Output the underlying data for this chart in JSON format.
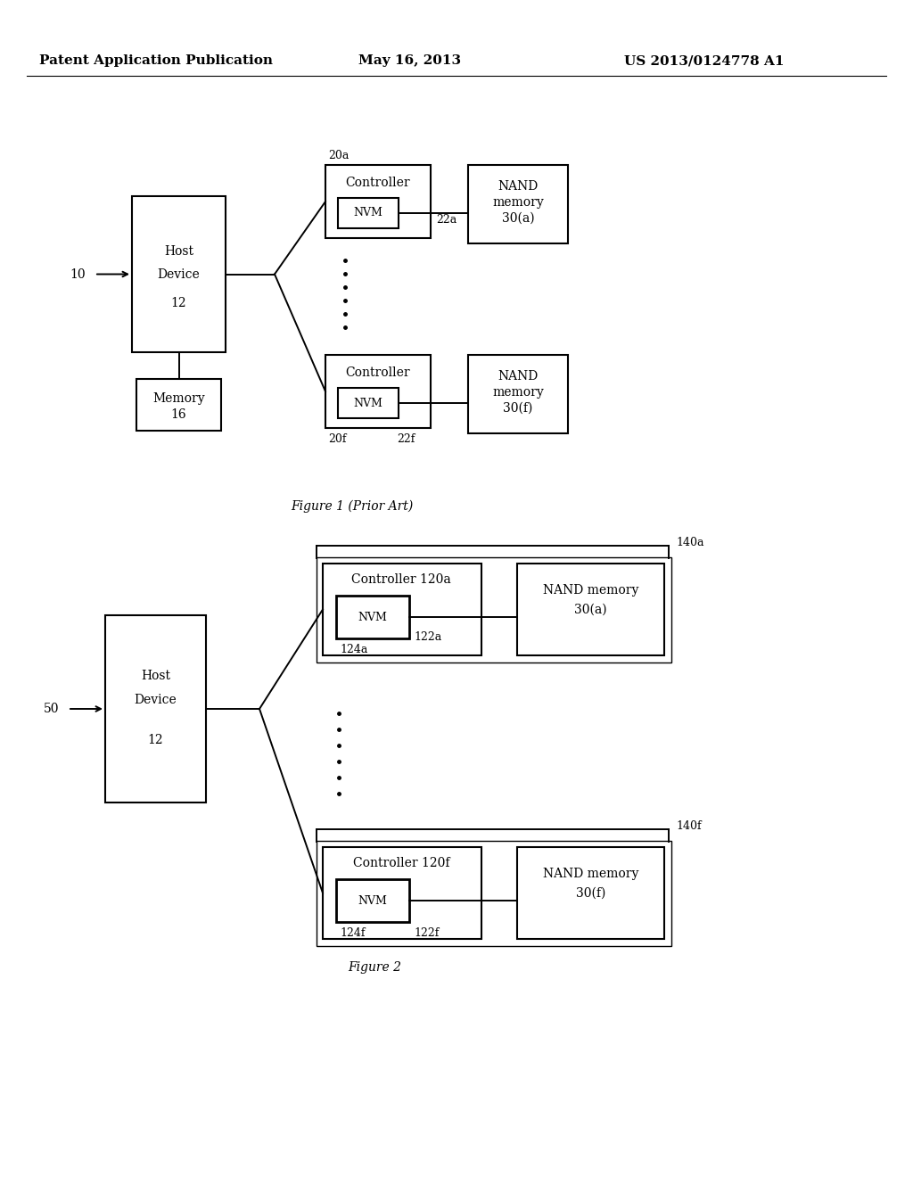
{
  "bg_color": "#ffffff",
  "header_left": "Patent Application Publication",
  "header_center": "May 16, 2013",
  "header_right": "US 2013/0124778 A1",
  "fig1_caption": "Figure 1 (Prior Art)",
  "fig2_caption": "Figure 2"
}
